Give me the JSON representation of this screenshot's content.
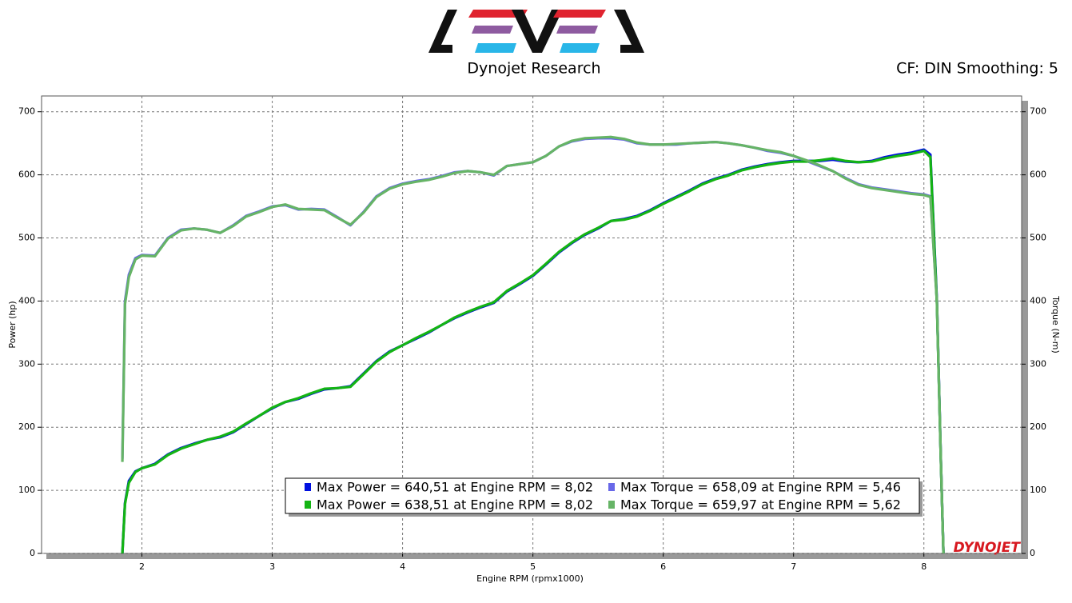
{
  "chart_data": {
    "type": "line",
    "brand": "Dynojet Research",
    "settings": "CF: DIN Smoothing: 5",
    "watermark": "DYNOJET",
    "xlabel": "Engine RPM (rpmx1000)",
    "ylabel": "Power (hp)",
    "y2label": "Torque (N-m)",
    "xlim": [
      1.23,
      8.75
    ],
    "xticks": [
      2,
      3,
      4,
      5,
      6,
      7,
      8
    ],
    "ylim": [
      0,
      725
    ],
    "yticks": [
      0,
      100,
      200,
      300,
      400,
      500,
      600,
      700
    ],
    "y2lim": [
      0,
      725
    ],
    "y2ticks": [
      0,
      100,
      200,
      300,
      400,
      500,
      600,
      700
    ],
    "grid": true,
    "x": [
      1.85,
      1.87,
      1.9,
      1.95,
      2.0,
      2.1,
      2.2,
      2.3,
      2.4,
      2.5,
      2.6,
      2.7,
      2.8,
      2.9,
      3.0,
      3.1,
      3.2,
      3.3,
      3.4,
      3.5,
      3.6,
      3.7,
      3.8,
      3.9,
      4.0,
      4.1,
      4.2,
      4.3,
      4.4,
      4.5,
      4.6,
      4.7,
      4.8,
      4.9,
      5.0,
      5.1,
      5.2,
      5.3,
      5.4,
      5.5,
      5.6,
      5.7,
      5.8,
      5.9,
      6.0,
      6.1,
      6.2,
      6.3,
      6.4,
      6.5,
      6.6,
      6.7,
      6.8,
      6.9,
      7.0,
      7.1,
      7.2,
      7.3,
      7.4,
      7.5,
      7.6,
      7.7,
      7.8,
      7.9,
      8.0,
      8.05,
      8.1,
      8.13,
      8.15
    ],
    "series": [
      {
        "name": "Max Power = 640,51 at Engine RPM = 8,02",
        "color": "#0010e0",
        "axis": "y",
        "values": [
          0,
          80,
          115,
          130,
          135,
          142,
          157,
          167,
          174,
          180,
          184,
          192,
          205,
          218,
          230,
          240,
          245,
          253,
          260,
          262,
          265,
          285,
          305,
          320,
          330,
          340,
          350,
          362,
          373,
          382,
          390,
          397,
          415,
          427,
          440,
          458,
          477,
          492,
          505,
          515,
          527,
          530,
          535,
          544,
          555,
          565,
          575,
          586,
          594,
          600,
          608,
          613,
          617,
          620,
          622,
          622,
          622,
          624,
          621,
          620,
          622,
          628,
          632,
          635,
          640,
          632,
          400,
          150,
          0
        ]
      },
      {
        "name": "Max Torque = 658,09 at Engine RPM = 5,46",
        "color": "#6868e8",
        "axis": "y2",
        "values": [
          150,
          400,
          442,
          468,
          473,
          472,
          500,
          513,
          515,
          513,
          508,
          520,
          535,
          542,
          550,
          552,
          545,
          546,
          545,
          533,
          520,
          541,
          566,
          579,
          586,
          590,
          593,
          598,
          604,
          606,
          604,
          599,
          614,
          617,
          620,
          630,
          645,
          653,
          657,
          658,
          658,
          656,
          650,
          648,
          648,
          648,
          650,
          651,
          652,
          650,
          647,
          643,
          638,
          635,
          630,
          622,
          614,
          606,
          595,
          585,
          580,
          577,
          574,
          571,
          569,
          566,
          400,
          150,
          0
        ]
      },
      {
        "name": "Max Power = 638,51 at Engine RPM = 8,02",
        "color": "#14b414",
        "axis": "y",
        "values": [
          0,
          78,
          112,
          129,
          135,
          141,
          156,
          166,
          173,
          180,
          185,
          193,
          206,
          218,
          231,
          240,
          246,
          254,
          261,
          262,
          264,
          284,
          304,
          319,
          330,
          341,
          351,
          362,
          374,
          383,
          391,
          398,
          416,
          428,
          441,
          459,
          478,
          493,
          506,
          516,
          527,
          529,
          534,
          543,
          554,
          564,
          574,
          585,
          593,
          599,
          607,
          612,
          616,
          619,
          621,
          621,
          623,
          626,
          622,
          620,
          621,
          626,
          630,
          633,
          638,
          628,
          395,
          148,
          0
        ]
      },
      {
        "name": "Max Torque = 659,97 at Engine RPM = 5,62",
        "color": "#66b466",
        "axis": "y2",
        "values": [
          145,
          395,
          438,
          466,
          472,
          471,
          499,
          512,
          515,
          513,
          508,
          519,
          534,
          541,
          549,
          553,
          546,
          545,
          544,
          532,
          521,
          540,
          565,
          578,
          585,
          589,
          592,
          597,
          603,
          606,
          604,
          600,
          614,
          617,
          620,
          630,
          645,
          654,
          658,
          659,
          660,
          657,
          651,
          648,
          648,
          649,
          650,
          651,
          652,
          650,
          647,
          643,
          639,
          636,
          630,
          623,
          615,
          606,
          594,
          584,
          579,
          576,
          573,
          570,
          568,
          565,
          398,
          148,
          0
        ]
      }
    ]
  }
}
